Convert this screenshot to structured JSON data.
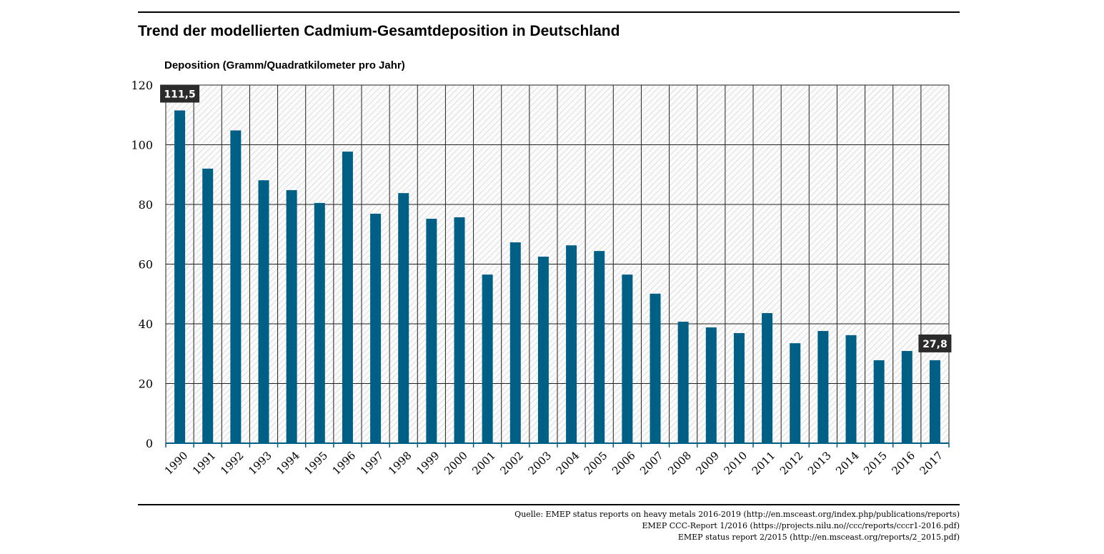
{
  "chart_data": {
    "type": "bar",
    "title": "Trend der modellierten Cadmium-Gesamtdeposition in Deutschland",
    "ylabel": "Deposition (Gramm/Quadratkilometer pro Jahr)",
    "xlabel": "",
    "ylim": [
      0,
      120
    ],
    "yticks": [
      0,
      20,
      40,
      60,
      80,
      100,
      120
    ],
    "grid": true,
    "categories": [
      "1990",
      "1991",
      "1992",
      "1993",
      "1994",
      "1995",
      "1996",
      "1997",
      "1998",
      "1999",
      "2000",
      "2001",
      "2002",
      "2003",
      "2004",
      "2005",
      "2006",
      "2007",
      "2008",
      "2009",
      "2010",
      "2011",
      "2012",
      "2013",
      "2014",
      "2015",
      "2016",
      "2017"
    ],
    "values": [
      111.5,
      92,
      104.8,
      88.1,
      84.8,
      80.5,
      97.7,
      76.9,
      83.8,
      75.2,
      75.7,
      56.5,
      67.3,
      62.5,
      66.3,
      64.4,
      56.5,
      50.1,
      40.7,
      38.8,
      36.9,
      43.6,
      33.5,
      37.6,
      36.2,
      27.8,
      30.9,
      27.8
    ],
    "data_labels": [
      {
        "category": "1990",
        "text": "111,5"
      },
      {
        "category": "2017",
        "text": "27,8"
      }
    ],
    "colors": {
      "bar": "#005f85",
      "label_bg": "#2b2b2b",
      "axis": "#005f85"
    }
  },
  "sources": [
    "Quelle: EMEP status reports on heavy metals 2016-2019 (http://en.msceast.org/index.php/publications/reports)",
    "EMEP CCC-Report 1/2016 (https://projects.nilu.no//ccc/reports/cccr1-2016.pdf)",
    "EMEP status report 2/2015 (http://en.msceast.org/reports/2_2015.pdf)"
  ]
}
